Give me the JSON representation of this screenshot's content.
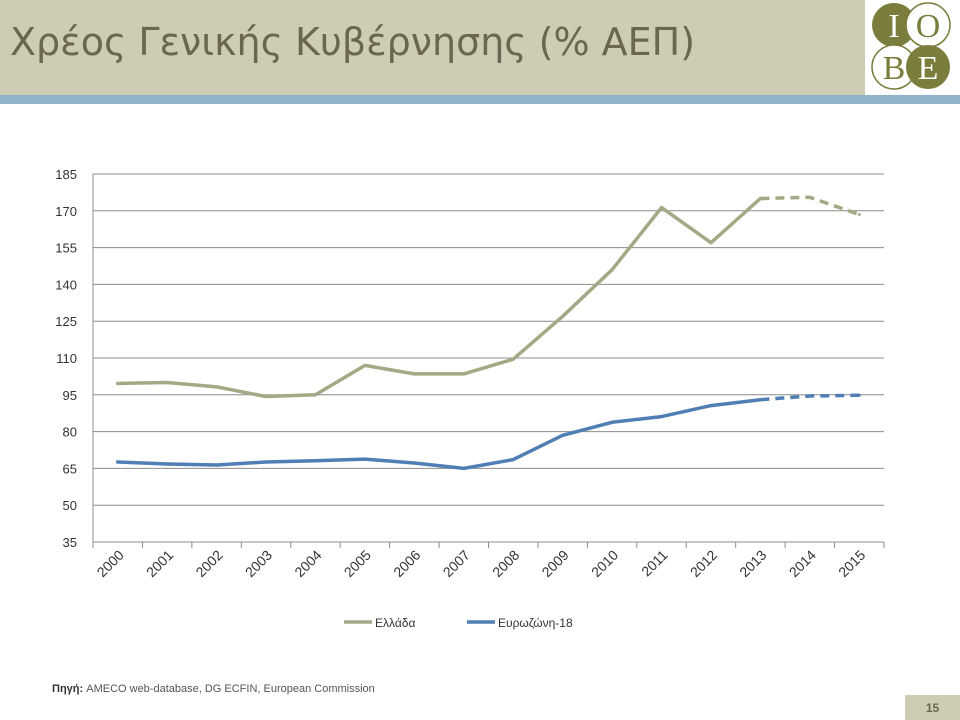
{
  "slide": {
    "title": "Χρέος Γενικής Κυβέρνησης (% ΑΕΠ)",
    "source_label": "Πηγή:",
    "source_text": " AMECO web-database, DG ECFIN, European Commission",
    "page_number": "15"
  },
  "logo": {
    "letters": [
      "I",
      "O",
      "B",
      "E"
    ]
  },
  "colors": {
    "header_bg": "#cdcdb6",
    "rule": "#8fb4c8",
    "logo_green": "#7a7d3c",
    "greece": "#a3a985",
    "eurozone": "#4f7fb5"
  },
  "chart_data": {
    "type": "line",
    "categories": [
      "2000",
      "2001",
      "2002",
      "2003",
      "2004",
      "2005",
      "2006",
      "2007",
      "2008",
      "2009",
      "2010",
      "2011",
      "2012",
      "2013",
      "2014",
      "2015"
    ],
    "ylim": [
      35,
      185
    ],
    "yticks": [
      35,
      50,
      65,
      80,
      95,
      110,
      125,
      140,
      155,
      170,
      185
    ],
    "grid": true,
    "legend_position": "bottom",
    "series": [
      {
        "name": "Ελλάδα",
        "color": "#a3a985",
        "values": [
          99.6,
          100.0,
          98.2,
          94.3,
          95.0,
          107.0,
          103.5,
          103.5,
          109.5,
          127.0,
          146.0,
          171.3,
          157.0,
          175.0,
          175.5,
          168.5
        ],
        "projected_from": "2013"
      },
      {
        "name": "Ευρωζώνη-18",
        "color": "#4f7fb5",
        "values": [
          67.6,
          66.8,
          66.4,
          67.6,
          68.1,
          68.8,
          67.2,
          65.0,
          68.6,
          78.5,
          83.8,
          86.1,
          90.6,
          93.0,
          94.5,
          94.8
        ],
        "projected_from": "2013"
      }
    ]
  }
}
